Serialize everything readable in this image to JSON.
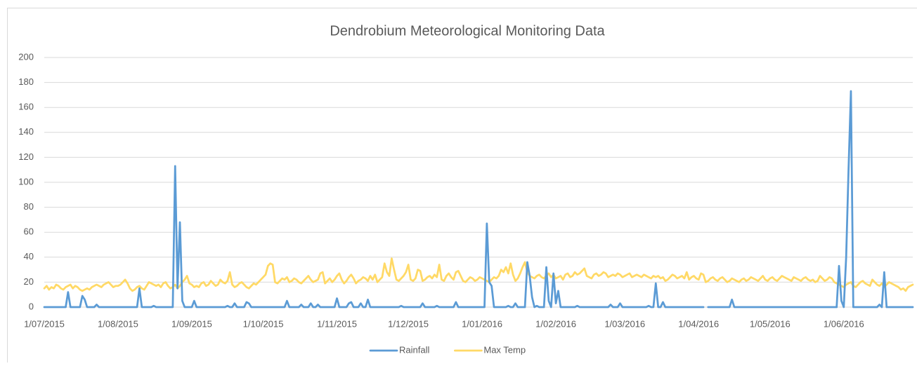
{
  "chart_data": {
    "type": "line",
    "title": "Dendrobium Meteorological Monitoring Data",
    "x": [
      "2015-07-01",
      "2015-07-02",
      "2015-07-03",
      "2015-07-04",
      "2015-07-05",
      "2015-07-06",
      "2015-07-07",
      "2015-07-08",
      "2015-07-09",
      "2015-07-10",
      "2015-07-11",
      "2015-07-12",
      "2015-07-13",
      "2015-07-14",
      "2015-07-15",
      "2015-07-16",
      "2015-07-17",
      "2015-07-18",
      "2015-07-19",
      "2015-07-20",
      "2015-07-21",
      "2015-07-22",
      "2015-07-23",
      "2015-07-24",
      "2015-07-25",
      "2015-07-26",
      "2015-07-27",
      "2015-07-28",
      "2015-07-29",
      "2015-07-30",
      "2015-07-31",
      "2015-08-01",
      "2015-08-02",
      "2015-08-03",
      "2015-08-04",
      "2015-08-05",
      "2015-08-06",
      "2015-08-07",
      "2015-08-08",
      "2015-08-09",
      "2015-08-10",
      "2015-08-11",
      "2015-08-12",
      "2015-08-13",
      "2015-08-14",
      "2015-08-15",
      "2015-08-16",
      "2015-08-17",
      "2015-08-18",
      "2015-08-19",
      "2015-08-20",
      "2015-08-21",
      "2015-08-22",
      "2015-08-23",
      "2015-08-24",
      "2015-08-25",
      "2015-08-26",
      "2015-08-27",
      "2015-08-28",
      "2015-08-29",
      "2015-08-30",
      "2015-08-31",
      "2015-09-01",
      "2015-09-02",
      "2015-09-03",
      "2015-09-04",
      "2015-09-05",
      "2015-09-06",
      "2015-09-07",
      "2015-09-08",
      "2015-09-09",
      "2015-09-10",
      "2015-09-11",
      "2015-09-12",
      "2015-09-13",
      "2015-09-14",
      "2015-09-15",
      "2015-09-16",
      "2015-09-17",
      "2015-09-18",
      "2015-09-19",
      "2015-09-20",
      "2015-09-21",
      "2015-09-22",
      "2015-09-23",
      "2015-09-24",
      "2015-09-25",
      "2015-09-26",
      "2015-09-27",
      "2015-09-28",
      "2015-09-29",
      "2015-09-30",
      "2015-10-01",
      "2015-10-02",
      "2015-10-03",
      "2015-10-04",
      "2015-10-05",
      "2015-10-06",
      "2015-10-07",
      "2015-10-08",
      "2015-10-09",
      "2015-10-10",
      "2015-10-11",
      "2015-10-12",
      "2015-10-13",
      "2015-10-14",
      "2015-10-15",
      "2015-10-16",
      "2015-10-17",
      "2015-10-18",
      "2015-10-19",
      "2015-10-20",
      "2015-10-21",
      "2015-10-22",
      "2015-10-23",
      "2015-10-24",
      "2015-10-25",
      "2015-10-26",
      "2015-10-27",
      "2015-10-28",
      "2015-10-29",
      "2015-10-30",
      "2015-10-31",
      "2015-11-01",
      "2015-11-02",
      "2015-11-03",
      "2015-11-04",
      "2015-11-05",
      "2015-11-06",
      "2015-11-07",
      "2015-11-08",
      "2015-11-09",
      "2015-11-10",
      "2015-11-11",
      "2015-11-12",
      "2015-11-13",
      "2015-11-14",
      "2015-11-15",
      "2015-11-16",
      "2015-11-17",
      "2015-11-18",
      "2015-11-19",
      "2015-11-20",
      "2015-11-21",
      "2015-11-22",
      "2015-11-23",
      "2015-11-24",
      "2015-11-25",
      "2015-11-26",
      "2015-11-27",
      "2015-11-28",
      "2015-11-29",
      "2015-11-30",
      "2015-12-01",
      "2015-12-02",
      "2015-12-03",
      "2015-12-04",
      "2015-12-05",
      "2015-12-06",
      "2015-12-07",
      "2015-12-08",
      "2015-12-09",
      "2015-12-10",
      "2015-12-11",
      "2015-12-12",
      "2015-12-13",
      "2015-12-14",
      "2015-12-15",
      "2015-12-16",
      "2015-12-17",
      "2015-12-18",
      "2015-12-19",
      "2015-12-20",
      "2015-12-21",
      "2015-12-22",
      "2015-12-23",
      "2015-12-24",
      "2015-12-25",
      "2015-12-26",
      "2015-12-27",
      "2015-12-28",
      "2015-12-29",
      "2015-12-30",
      "2015-12-31",
      "2016-01-01",
      "2016-01-02",
      "2016-01-03",
      "2016-01-04",
      "2016-01-05",
      "2016-01-06",
      "2016-01-07",
      "2016-01-08",
      "2016-01-09",
      "2016-01-10",
      "2016-01-11",
      "2016-01-12",
      "2016-01-13",
      "2016-01-14",
      "2016-01-15",
      "2016-01-16",
      "2016-01-17",
      "2016-01-18",
      "2016-01-19",
      "2016-01-20",
      "2016-01-21",
      "2016-01-22",
      "2016-01-23",
      "2016-01-24",
      "2016-01-25",
      "2016-01-26",
      "2016-01-27",
      "2016-01-28",
      "2016-01-29",
      "2016-01-30",
      "2016-01-31",
      "2016-02-01",
      "2016-02-02",
      "2016-02-03",
      "2016-02-04",
      "2016-02-05",
      "2016-02-06",
      "2016-02-07",
      "2016-02-08",
      "2016-02-09",
      "2016-02-10",
      "2016-02-11",
      "2016-02-12",
      "2016-02-13",
      "2016-02-14",
      "2016-02-15",
      "2016-02-16",
      "2016-02-17",
      "2016-02-18",
      "2016-02-19",
      "2016-02-20",
      "2016-02-21",
      "2016-02-22",
      "2016-02-23",
      "2016-02-24",
      "2016-02-25",
      "2016-02-26",
      "2016-02-27",
      "2016-02-28",
      "2016-02-29",
      "2016-03-01",
      "2016-03-02",
      "2016-03-03",
      "2016-03-04",
      "2016-03-05",
      "2016-03-06",
      "2016-03-07",
      "2016-03-08",
      "2016-03-09",
      "2016-03-10",
      "2016-03-11",
      "2016-03-12",
      "2016-03-13",
      "2016-03-14",
      "2016-03-15",
      "2016-03-16",
      "2016-03-17",
      "2016-03-18",
      "2016-03-19",
      "2016-03-20",
      "2016-03-21",
      "2016-03-22",
      "2016-03-23",
      "2016-03-24",
      "2016-03-25",
      "2016-03-26",
      "2016-03-27",
      "2016-03-28",
      "2016-03-29",
      "2016-03-30",
      "2016-03-31",
      "2016-04-01",
      "2016-04-02",
      "2016-04-03",
      "2016-04-04",
      "2016-04-05",
      "2016-04-06",
      "2016-04-07",
      "2016-04-08",
      "2016-04-09",
      "2016-04-10",
      "2016-04-11",
      "2016-04-12",
      "2016-04-13",
      "2016-04-14",
      "2016-04-15",
      "2016-04-16",
      "2016-04-17",
      "2016-04-18",
      "2016-04-19",
      "2016-04-20",
      "2016-04-21",
      "2016-04-22",
      "2016-04-23",
      "2016-04-24",
      "2016-04-25",
      "2016-04-26",
      "2016-04-27",
      "2016-04-28",
      "2016-04-29",
      "2016-04-30",
      "2016-05-01",
      "2016-05-02",
      "2016-05-03",
      "2016-05-04",
      "2016-05-05",
      "2016-05-06",
      "2016-05-07",
      "2016-05-08",
      "2016-05-09",
      "2016-05-10",
      "2016-05-11",
      "2016-05-12",
      "2016-05-13",
      "2016-05-14",
      "2016-05-15",
      "2016-05-16",
      "2016-05-17",
      "2016-05-18",
      "2016-05-19",
      "2016-05-20",
      "2016-05-21",
      "2016-05-22",
      "2016-05-23",
      "2016-05-24",
      "2016-05-25",
      "2016-05-26",
      "2016-05-27",
      "2016-05-28",
      "2016-05-29",
      "2016-05-30",
      "2016-05-31",
      "2016-06-01",
      "2016-06-02",
      "2016-06-03",
      "2016-06-04",
      "2016-06-05",
      "2016-06-06",
      "2016-06-07",
      "2016-06-08",
      "2016-06-09",
      "2016-06-10",
      "2016-06-11",
      "2016-06-12",
      "2016-06-13",
      "2016-06-14",
      "2016-06-15",
      "2016-06-16",
      "2016-06-17",
      "2016-06-18",
      "2016-06-19",
      "2016-06-20",
      "2016-06-21",
      "2016-06-22",
      "2016-06-23",
      "2016-06-24",
      "2016-06-25",
      "2016-06-26",
      "2016-06-27",
      "2016-06-28",
      "2016-06-29",
      "2016-06-30"
    ],
    "series": [
      {
        "name": "Rainfall",
        "color": "#5b9bd5",
        "values": [
          0,
          0,
          0,
          0,
          0,
          0,
          0,
          0,
          0,
          0,
          12,
          0,
          0,
          0,
          0,
          0,
          9,
          6,
          0,
          0,
          0,
          0,
          2,
          0,
          0,
          0,
          0,
          0,
          0,
          0,
          0,
          0,
          0,
          0,
          0,
          0,
          0,
          0,
          0,
          0,
          15,
          0,
          0,
          0,
          0,
          0,
          1,
          0,
          0,
          0,
          0,
          0,
          0,
          0,
          0,
          113,
          15,
          68,
          5,
          0,
          0,
          0,
          0,
          5,
          0,
          0,
          0,
          0,
          0,
          0,
          0,
          0,
          0,
          0,
          0,
          0,
          0,
          1,
          0,
          0,
          3,
          0,
          0,
          0,
          0,
          4,
          3,
          0,
          0,
          0,
          0,
          0,
          0,
          0,
          0,
          0,
          0,
          0,
          0,
          0,
          0,
          0,
          5,
          0,
          0,
          0,
          0,
          0,
          2,
          0,
          0,
          0,
          3,
          0,
          0,
          2,
          0,
          0,
          0,
          0,
          0,
          0,
          0,
          7,
          0,
          0,
          0,
          0,
          3,
          4,
          0,
          0,
          0,
          3,
          0,
          0,
          6,
          0,
          0,
          0,
          0,
          0,
          0,
          0,
          0,
          0,
          0,
          0,
          0,
          0,
          1,
          0,
          0,
          0,
          0,
          0,
          0,
          0,
          0,
          3,
          0,
          0,
          0,
          0,
          0,
          1,
          0,
          0,
          0,
          0,
          0,
          0,
          0,
          4,
          0,
          0,
          0,
          0,
          0,
          0,
          0,
          0,
          0,
          0,
          0,
          0,
          67,
          20,
          17,
          0,
          0,
          0,
          0,
          0,
          0,
          1,
          0,
          0,
          3,
          0,
          0,
          0,
          0,
          36,
          25,
          8,
          0,
          1,
          0,
          0,
          0,
          32,
          5,
          0,
          27,
          3,
          13,
          0,
          0,
          0,
          0,
          0,
          0,
          0,
          1,
          0,
          0,
          0,
          0,
          0,
          0,
          0,
          0,
          0,
          0,
          0,
          0,
          0,
          2,
          0,
          0,
          0,
          3,
          0,
          0,
          0,
          0,
          0,
          0,
          0,
          0,
          0,
          0,
          0,
          1,
          0,
          0,
          19,
          0,
          0,
          4,
          0,
          0,
          0,
          0,
          0,
          0,
          0,
          0,
          0,
          0,
          0,
          0,
          0,
          0,
          0,
          0,
          0,
          null,
          0,
          0,
          0,
          0,
          0,
          0,
          0,
          0,
          0,
          0,
          6,
          0,
          0,
          0,
          0,
          0,
          0,
          0,
          0,
          0,
          0,
          0,
          0,
          0,
          0,
          0,
          0,
          0,
          0,
          0,
          0,
          0,
          0,
          0,
          0,
          0,
          0,
          0,
          0,
          0,
          0,
          0,
          0,
          0,
          0,
          0,
          0,
          0,
          0,
          0,
          0,
          0,
          0,
          0,
          0,
          33,
          5,
          0,
          40,
          110,
          173,
          0,
          0,
          0,
          0,
          0,
          0,
          0,
          0,
          0,
          0,
          0,
          2,
          0,
          28,
          0,
          0,
          0,
          0,
          0,
          0,
          0,
          0,
          0,
          0,
          0,
          0
        ]
      },
      {
        "name": "Max Temp",
        "color": "#ffd966",
        "values": [
          15,
          17,
          14,
          16,
          15,
          18,
          17,
          15,
          14,
          16,
          17,
          18,
          15,
          17,
          16,
          14,
          13,
          14,
          15,
          14,
          16,
          17,
          18,
          17,
          16,
          18,
          19,
          20,
          18,
          16,
          17,
          17,
          18,
          20,
          22,
          19,
          15,
          13,
          14,
          16,
          17,
          15,
          14,
          17,
          20,
          19,
          18,
          17,
          18,
          16,
          19,
          20,
          17,
          15,
          16,
          18,
          15,
          17,
          20,
          22,
          25,
          19,
          18,
          16,
          17,
          16,
          19,
          20,
          17,
          18,
          21,
          19,
          17,
          18,
          22,
          20,
          19,
          21,
          28,
          18,
          16,
          17,
          19,
          20,
          18,
          16,
          15,
          17,
          19,
          18,
          20,
          22,
          24,
          26,
          33,
          35,
          34,
          20,
          19,
          21,
          23,
          22,
          24,
          20,
          21,
          23,
          22,
          20,
          19,
          21,
          23,
          25,
          22,
          20,
          21,
          22,
          27,
          28,
          19,
          21,
          23,
          20,
          22,
          25,
          27,
          22,
          19,
          21,
          24,
          26,
          23,
          19,
          21,
          22,
          24,
          23,
          21,
          25,
          22,
          26,
          20,
          22,
          24,
          35,
          28,
          25,
          39,
          30,
          22,
          21,
          23,
          25,
          28,
          34,
          22,
          21,
          23,
          30,
          29,
          21,
          22,
          24,
          25,
          23,
          26,
          24,
          34,
          22,
          21,
          25,
          27,
          24,
          22,
          28,
          29,
          25,
          21,
          20,
          22,
          24,
          23,
          21,
          22,
          24,
          23,
          22,
          21,
          20,
          22,
          24,
          23,
          25,
          30,
          28,
          32,
          27,
          35,
          26,
          21,
          23,
          27,
          32,
          36,
          28,
          25,
          24,
          23,
          25,
          26,
          24,
          23,
          25,
          27,
          24,
          26,
          23,
          24,
          25,
          22,
          26,
          27,
          24,
          25,
          28,
          26,
          27,
          29,
          31,
          25,
          24,
          23,
          26,
          27,
          25,
          26,
          28,
          27,
          24,
          25,
          26,
          25,
          27,
          26,
          24,
          25,
          26,
          27,
          24,
          25,
          26,
          25,
          24,
          26,
          25,
          24,
          23,
          25,
          24,
          25,
          23,
          24,
          21,
          22,
          24,
          26,
          25,
          23,
          24,
          25,
          23,
          28,
          22,
          24,
          25,
          23,
          22,
          27,
          26,
          20,
          21,
          23,
          24,
          22,
          21,
          23,
          24,
          22,
          20,
          21,
          23,
          22,
          21,
          20,
          22,
          23,
          21,
          22,
          24,
          23,
          22,
          21,
          23,
          25,
          22,
          21,
          23,
          24,
          22,
          21,
          23,
          25,
          24,
          23,
          22,
          21,
          24,
          23,
          22,
          21,
          23,
          24,
          22,
          21,
          22,
          20,
          21,
          25,
          23,
          21,
          22,
          24,
          23,
          20,
          19,
          18,
          17,
          16,
          18,
          19,
          20,
          17,
          16,
          18,
          20,
          21,
          19,
          18,
          17,
          22,
          20,
          18,
          17,
          19,
          16,
          18,
          20,
          19,
          18,
          17,
          16,
          14,
          15,
          13,
          16,
          17,
          18
        ]
      }
    ],
    "xlim": [
      "2015-07-01",
      "2016-06-30"
    ],
    "xticks": [
      {
        "value": "2015-07-01",
        "label": "1/07/2015"
      },
      {
        "value": "2015-08-01",
        "label": "1/08/2015"
      },
      {
        "value": "2015-09-01",
        "label": "1/09/2015"
      },
      {
        "value": "2015-10-01",
        "label": "1/10/2015"
      },
      {
        "value": "2015-11-01",
        "label": "1/11/2015"
      },
      {
        "value": "2015-12-01",
        "label": "1/12/2015"
      },
      {
        "value": "2016-01-01",
        "label": "1/01/2016"
      },
      {
        "value": "2016-02-01",
        "label": "1/02/2016"
      },
      {
        "value": "2016-03-01",
        "label": "1/03/2016"
      },
      {
        "value": "2016-04-01",
        "label": "1/04/2016"
      },
      {
        "value": "2016-05-01",
        "label": "1/05/2016"
      },
      {
        "value": "2016-06-01",
        "label": "1/06/2016"
      }
    ],
    "ylim": [
      0,
      200
    ],
    "yticks": [
      0,
      20,
      40,
      60,
      80,
      100,
      120,
      140,
      160,
      180,
      200
    ],
    "grid": true,
    "legend": "bottom"
  }
}
